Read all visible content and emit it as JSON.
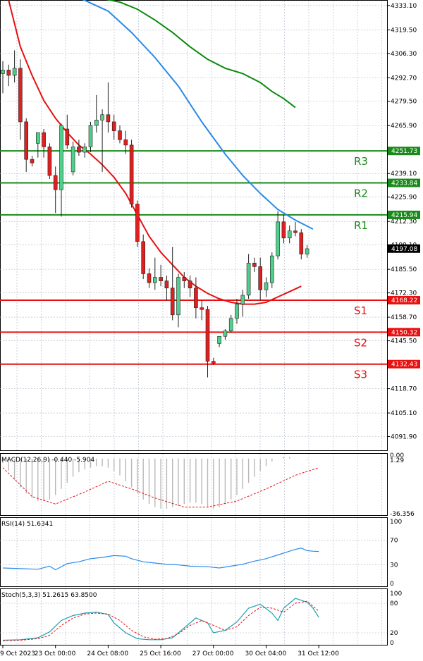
{
  "chart_data": {
    "type": "candlestick",
    "price_axis": {
      "ylim": [
        4085.0,
        4335.0
      ],
      "ticks": [
        "4333.10",
        "4319.50",
        "4306.30",
        "4292.70",
        "4279.50",
        "4265.90",
        "4239.10",
        "4225.90",
        "4212.30",
        "4199.10",
        "4185.50",
        "4172.30",
        "4158.70",
        "4145.50",
        "4118.70",
        "4105.10",
        "4091.90"
      ]
    },
    "current_price": {
      "value": 4197.08,
      "label": "4197.08"
    },
    "levels": [
      {
        "name": "R3",
        "value": 4251.73,
        "label": "4251.73",
        "color": "#1a8a1a"
      },
      {
        "name": "R2",
        "value": 4233.84,
        "label": "4233.84",
        "color": "#1a8a1a"
      },
      {
        "name": "R1",
        "value": 4215.94,
        "label": "4215.94",
        "color": "#1a8a1a"
      },
      {
        "name": "S1",
        "value": 4168.22,
        "label": "4168.22",
        "color": "#e81010"
      },
      {
        "name": "S2",
        "value": 4150.32,
        "label": "4150.32",
        "color": "#e81010"
      },
      {
        "name": "S3",
        "value": 4132.43,
        "label": "4132.43",
        "color": "#e81010"
      }
    ],
    "x_labels": [
      "9 Oct 2023",
      "23 Oct 00:00",
      "24 Oct 08:00",
      "25 Oct 16:00",
      "27 Oct 00:00",
      "30 Oct 04:00",
      "31 Oct 12:00"
    ],
    "x_label_index": [
      0,
      9,
      18,
      27,
      36,
      45,
      54
    ],
    "candles": [
      {
        "o": 4295,
        "h": 4302,
        "l": 4284,
        "c": 4297
      },
      {
        "o": 4297,
        "h": 4300,
        "l": 4288,
        "c": 4294
      },
      {
        "o": 4294,
        "h": 4308,
        "l": 4290,
        "c": 4298
      },
      {
        "o": 4298,
        "h": 4303,
        "l": 4258,
        "c": 4268
      },
      {
        "o": 4268,
        "h": 4270,
        "l": 4240,
        "c": 4247
      },
      {
        "o": 4247,
        "h": 4249,
        "l": 4243,
        "c": 4245
      },
      {
        "o": 4256,
        "h": 4262,
        "l": 4248,
        "c": 4262
      },
      {
        "o": 4262,
        "h": 4264,
        "l": 4248,
        "c": 4254
      },
      {
        "o": 4254,
        "h": 4256,
        "l": 4236,
        "c": 4238
      },
      {
        "o": 4238,
        "h": 4243,
        "l": 4217,
        "c": 4230
      },
      {
        "o": 4230,
        "h": 4267,
        "l": 4215,
        "c": 4266
      },
      {
        "o": 4264,
        "h": 4272,
        "l": 4253,
        "c": 4255
      },
      {
        "o": 4240,
        "h": 4257,
        "l": 4238,
        "c": 4254
      },
      {
        "o": 4254,
        "h": 4258,
        "l": 4249,
        "c": 4251
      },
      {
        "o": 4251,
        "h": 4256,
        "l": 4248,
        "c": 4254
      },
      {
        "o": 4254,
        "h": 4268,
        "l": 4251,
        "c": 4266
      },
      {
        "o": 4266,
        "h": 4283,
        "l": 4262,
        "c": 4269
      },
      {
        "o": 4269,
        "h": 4275,
        "l": 4240,
        "c": 4272
      },
      {
        "o": 4272,
        "h": 4290,
        "l": 4262,
        "c": 4268
      },
      {
        "o": 4268,
        "h": 4272,
        "l": 4258,
        "c": 4263
      },
      {
        "o": 4263,
        "h": 4266,
        "l": 4256,
        "c": 4258
      },
      {
        "o": 4258,
        "h": 4263,
        "l": 4250,
        "c": 4255
      },
      {
        "o": 4255,
        "h": 4258,
        "l": 4220,
        "c": 4222
      },
      {
        "o": 4222,
        "h": 4224,
        "l": 4198,
        "c": 4201
      },
      {
        "o": 4201,
        "h": 4205,
        "l": 4180,
        "c": 4183
      },
      {
        "o": 4183,
        "h": 4186,
        "l": 4175,
        "c": 4178
      },
      {
        "o": 4178,
        "h": 4192,
        "l": 4174,
        "c": 4181
      },
      {
        "o": 4181,
        "h": 4188,
        "l": 4176,
        "c": 4179
      },
      {
        "o": 4179,
        "h": 4182,
        "l": 4168,
        "c": 4175
      },
      {
        "o": 4175,
        "h": 4198,
        "l": 4157,
        "c": 4160
      },
      {
        "o": 4160,
        "h": 4183,
        "l": 4153,
        "c": 4181
      },
      {
        "o": 4181,
        "h": 4184,
        "l": 4175,
        "c": 4179
      },
      {
        "o": 4179,
        "h": 4182,
        "l": 4170,
        "c": 4175
      },
      {
        "o": 4175,
        "h": 4181,
        "l": 4158,
        "c": 4164
      },
      {
        "o": 4164,
        "h": 4168,
        "l": 4157,
        "c": 4163
      },
      {
        "o": 4163,
        "h": 4165,
        "l": 4125,
        "c": 4134
      },
      {
        "o": 4134,
        "h": 4136,
        "l": 4132,
        "c": 4133
      },
      {
        "o": 4144,
        "h": 4148,
        "l": 4142,
        "c": 4148
      },
      {
        "o": 4148,
        "h": 4152,
        "l": 4146,
        "c": 4151
      },
      {
        "o": 4151,
        "h": 4160,
        "l": 4150,
        "c": 4158
      },
      {
        "o": 4158,
        "h": 4169,
        "l": 4155,
        "c": 4166
      },
      {
        "o": 4166,
        "h": 4174,
        "l": 4159,
        "c": 4171
      },
      {
        "o": 4171,
        "h": 4194,
        "l": 4169,
        "c": 4189
      },
      {
        "o": 4189,
        "h": 4192,
        "l": 4184,
        "c": 4187
      },
      {
        "o": 4187,
        "h": 4192,
        "l": 4168,
        "c": 4174
      },
      {
        "o": 4174,
        "h": 4181,
        "l": 4170,
        "c": 4178
      },
      {
        "o": 4178,
        "h": 4195,
        "l": 4175,
        "c": 4193
      },
      {
        "o": 4193,
        "h": 4218,
        "l": 4191,
        "c": 4212
      },
      {
        "o": 4212,
        "h": 4216,
        "l": 4200,
        "c": 4203
      },
      {
        "o": 4203,
        "h": 4210,
        "l": 4200,
        "c": 4207
      },
      {
        "o": 4207,
        "h": 4212,
        "l": 4204,
        "c": 4206
      },
      {
        "o": 4206,
        "h": 4208,
        "l": 4191,
        "c": 4194
      },
      {
        "o": 4194,
        "h": 4199,
        "l": 4192,
        "c": 4197
      }
    ],
    "moving_averages": [
      {
        "color": "#e81010",
        "points": [
          [
            1,
            4336
          ],
          [
            3,
            4310
          ],
          [
            5,
            4294
          ],
          [
            7,
            4280
          ],
          [
            9,
            4270
          ],
          [
            11,
            4262
          ],
          [
            13,
            4255
          ],
          [
            15,
            4250
          ],
          [
            17,
            4244
          ],
          [
            19,
            4237
          ],
          [
            21,
            4228
          ],
          [
            23,
            4216
          ],
          [
            25,
            4204
          ],
          [
            27,
            4195
          ],
          [
            29,
            4188
          ],
          [
            31,
            4181
          ],
          [
            33,
            4176
          ],
          [
            35,
            4172
          ],
          [
            37,
            4169
          ],
          [
            39,
            4167
          ],
          [
            41,
            4166
          ],
          [
            43,
            4166
          ],
          [
            45,
            4167
          ],
          [
            47,
            4170
          ],
          [
            49,
            4173
          ],
          [
            51,
            4176
          ]
        ]
      },
      {
        "color": "#2a8ae8",
        "points": [
          [
            10,
            4342
          ],
          [
            14,
            4336
          ],
          [
            18,
            4330
          ],
          [
            22,
            4318
          ],
          [
            26,
            4304
          ],
          [
            30,
            4288
          ],
          [
            34,
            4268
          ],
          [
            38,
            4250
          ],
          [
            41,
            4238
          ],
          [
            44,
            4228
          ],
          [
            47,
            4219
          ],
          [
            50,
            4213
          ],
          [
            53,
            4208
          ]
        ]
      },
      {
        "color": "#0a8a0a",
        "points": [
          [
            12,
            4341
          ],
          [
            14,
            4339
          ],
          [
            17,
            4337
          ],
          [
            20,
            4335
          ],
          [
            23,
            4331
          ],
          [
            26,
            4325
          ],
          [
            29,
            4318
          ],
          [
            32,
            4310
          ],
          [
            35,
            4303
          ],
          [
            38,
            4298
          ],
          [
            41,
            4295
          ],
          [
            44,
            4290
          ],
          [
            46,
            4285
          ],
          [
            48,
            4281
          ],
          [
            50,
            4276
          ]
        ]
      }
    ],
    "macd": {
      "label": "MACD(12,26,9) -0.440 -5.904",
      "ticks": [
        "0.00",
        "1.29",
        "-36.356"
      ],
      "ylim": [
        -36.356,
        1.29
      ],
      "histogram": [
        -3,
        -8,
        -14,
        -19,
        -23,
        -26,
        -28,
        -28,
        -27,
        -24,
        -20,
        -16,
        -12,
        -9,
        -7,
        -6,
        -5,
        -5,
        -6,
        -8,
        -11,
        -15,
        -19,
        -23,
        -27,
        -30,
        -32,
        -33,
        -33,
        -32,
        -31,
        -30,
        -29,
        -29,
        -30,
        -32,
        -33,
        -32,
        -30,
        -27,
        -24,
        -20,
        -16,
        -12,
        -8,
        -5,
        -2,
        0,
        1,
        1,
        0,
        0,
        -0.4
      ],
      "signal_points": [
        [
          0,
          -6
        ],
        [
          5,
          -25
        ],
        [
          9,
          -30
        ],
        [
          14,
          -22
        ],
        [
          18,
          -15
        ],
        [
          22,
          -20
        ],
        [
          26,
          -26
        ],
        [
          31,
          -32
        ],
        [
          35,
          -32
        ],
        [
          40,
          -28
        ],
        [
          45,
          -20
        ],
        [
          50,
          -11
        ],
        [
          54,
          -6
        ]
      ]
    },
    "rsi": {
      "label": "RSI(14) 51.6341",
      "ticks": [
        "100",
        "70",
        "30",
        "0"
      ],
      "ylim": [
        0,
        100
      ],
      "points": [
        [
          0,
          25
        ],
        [
          3,
          24
        ],
        [
          6,
          23
        ],
        [
          8,
          28
        ],
        [
          9,
          22
        ],
        [
          11,
          32
        ],
        [
          13,
          35
        ],
        [
          15,
          40
        ],
        [
          17,
          42
        ],
        [
          19,
          45
        ],
        [
          21,
          44
        ],
        [
          22,
          40
        ],
        [
          24,
          35
        ],
        [
          26,
          33
        ],
        [
          28,
          31
        ],
        [
          30,
          30
        ],
        [
          32,
          28
        ],
        [
          35,
          27
        ],
        [
          37,
          25
        ],
        [
          39,
          28
        ],
        [
          41,
          31
        ],
        [
          43,
          36
        ],
        [
          45,
          40
        ],
        [
          47,
          46
        ],
        [
          49,
          52
        ],
        [
          50,
          55
        ],
        [
          51,
          57
        ],
        [
          52,
          53
        ],
        [
          53,
          52
        ],
        [
          54,
          51.6
        ]
      ]
    },
    "stoch": {
      "label": "Stoch(5,3,3) 51.2615 63.8500",
      "ticks": [
        "100",
        "80",
        "20",
        "0"
      ],
      "ylim": [
        0,
        100
      ],
      "k_points": [
        [
          0,
          5
        ],
        [
          3,
          6
        ],
        [
          6,
          10
        ],
        [
          8,
          22
        ],
        [
          10,
          45
        ],
        [
          12,
          55
        ],
        [
          14,
          60
        ],
        [
          16,
          62
        ],
        [
          18,
          57
        ],
        [
          19,
          40
        ],
        [
          21,
          20
        ],
        [
          23,
          8
        ],
        [
          25,
          6
        ],
        [
          27,
          6
        ],
        [
          29,
          10
        ],
        [
          31,
          30
        ],
        [
          33,
          50
        ],
        [
          35,
          40
        ],
        [
          36,
          20
        ],
        [
          38,
          25
        ],
        [
          40,
          42
        ],
        [
          42,
          70
        ],
        [
          44,
          78
        ],
        [
          46,
          60
        ],
        [
          47,
          45
        ],
        [
          48,
          70
        ],
        [
          50,
          90
        ],
        [
          52,
          82
        ],
        [
          53,
          70
        ],
        [
          54,
          51.3
        ]
      ],
      "d_points": [
        [
          0,
          4
        ],
        [
          3,
          5
        ],
        [
          6,
          8
        ],
        [
          8,
          15
        ],
        [
          10,
          35
        ],
        [
          12,
          50
        ],
        [
          14,
          58
        ],
        [
          16,
          60
        ],
        [
          18,
          58
        ],
        [
          20,
          45
        ],
        [
          22,
          25
        ],
        [
          24,
          12
        ],
        [
          26,
          7
        ],
        [
          28,
          8
        ],
        [
          30,
          18
        ],
        [
          32,
          35
        ],
        [
          34,
          45
        ],
        [
          36,
          35
        ],
        [
          38,
          25
        ],
        [
          40,
          32
        ],
        [
          42,
          55
        ],
        [
          44,
          72
        ],
        [
          46,
          70
        ],
        [
          48,
          62
        ],
        [
          50,
          80
        ],
        [
          52,
          84
        ],
        [
          54,
          63.85
        ]
      ]
    }
  }
}
